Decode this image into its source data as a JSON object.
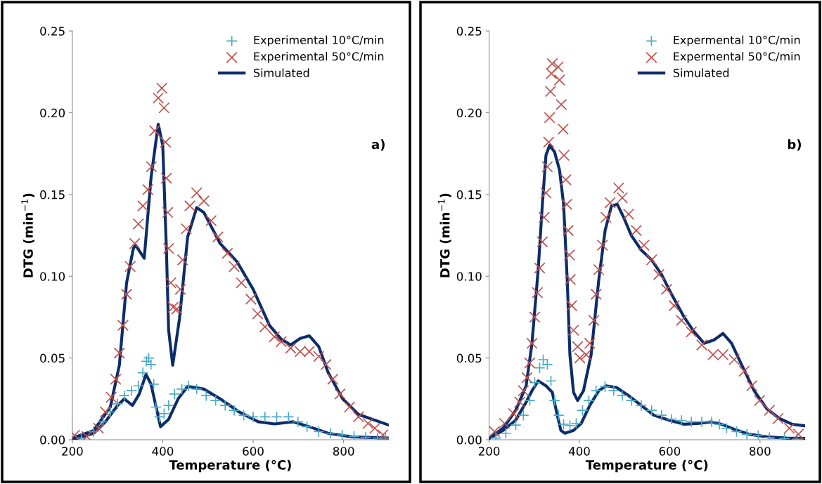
{
  "chart_data": [
    {
      "type": "line",
      "xlabel": "Temperature (°C)",
      "ylabel": "DTG (min$^{−1}$)",
      "annotations": [
        "a)"
      ],
      "xlim": [
        200,
        900
      ],
      "xticks": [
        200,
        400,
        600,
        800
      ],
      "ylim": [
        0,
        0.25
      ],
      "yticks": [
        {
          "value": 0,
          "label": "0.00"
        },
        {
          "value": 0.05,
          "label": "0.05"
        },
        {
          "value": 0.1,
          "label": "0.10"
        },
        {
          "value": 0.15,
          "label": "0.15"
        },
        {
          "value": 0.2,
          "label": "0.20"
        },
        {
          "value": 0.25,
          "label": "0.25"
        }
      ],
      "grid": false,
      "legend": "top right",
      "series": [
        {
          "name": "Experimental 10°C/min",
          "type": "scatter",
          "marker": "plus",
          "color": "#4bacc6",
          "x": [
            220,
            247,
            268,
            284,
            300,
            315,
            331,
            346,
            356,
            364,
            369,
            374,
            380,
            385,
            393,
            403,
            413,
            426,
            442,
            457,
            475,
            496,
            517,
            538,
            558,
            579,
            600,
            626,
            652,
            678,
            699,
            719,
            745,
            771,
            797,
            823,
            849,
            875,
            893
          ],
          "values": [
            0.001,
            0.005,
            0.011,
            0.017,
            0.022,
            0.027,
            0.03,
            0.033,
            0.041,
            0.048,
            0.05,
            0.046,
            0.034,
            0.02,
            0.014,
            0.016,
            0.021,
            0.028,
            0.031,
            0.033,
            0.031,
            0.027,
            0.024,
            0.021,
            0.018,
            0.015,
            0.014,
            0.014,
            0.014,
            0.014,
            0.011,
            0.008,
            0.005,
            0.004,
            0.003,
            0.002,
            0.0015,
            0.001,
            0.001
          ]
        },
        {
          "name": "Experimental 50°C/min",
          "type": "scatter",
          "marker": "cross",
          "color": "#c0504d",
          "x": [
            205,
            232,
            258,
            273,
            286,
            296,
            304,
            312,
            320,
            328,
            338,
            346,
            356,
            367,
            375,
            382,
            390,
            398,
            403,
            406,
            408,
            411,
            413,
            418,
            423,
            431,
            439,
            444,
            452,
            460,
            475,
            491,
            507,
            522,
            543,
            558,
            574,
            595,
            610,
            626,
            647,
            662,
            683,
            704,
            724,
            745,
            761,
            776,
            792,
            813,
            833,
            854,
            869,
            887
          ],
          "values": [
            0.0027,
            0.002,
            0.007,
            0.017,
            0.026,
            0.037,
            0.053,
            0.07,
            0.089,
            0.106,
            0.12,
            0.132,
            0.143,
            0.153,
            0.167,
            0.189,
            0.209,
            0.215,
            0.203,
            0.182,
            0.16,
            0.139,
            0.117,
            0.096,
            0.081,
            0.08,
            0.092,
            0.11,
            0.129,
            0.143,
            0.151,
            0.146,
            0.134,
            0.124,
            0.114,
            0.106,
            0.096,
            0.086,
            0.077,
            0.069,
            0.063,
            0.06,
            0.056,
            0.054,
            0.054,
            0.051,
            0.046,
            0.037,
            0.028,
            0.02,
            0.014,
            0.01,
            0.007,
            0.003
          ]
        },
        {
          "name": "Simulated",
          "marker": "none",
          "line_style": "solid",
          "color": "#0c2d6b",
          "x": [
            200,
            247,
            284,
            304,
            320,
            335,
            340,
            359,
            374,
            390,
            400,
            408,
            413,
            422,
            437,
            455,
            475,
            491,
            527,
            564,
            600,
            636,
            662,
            683,
            704,
            724,
            745,
            766,
            798,
            833,
            900
          ],
          "values": [
            0.001,
            0.0056,
            0.02,
            0.0456,
            0.096,
            0.117,
            0.119,
            0.111,
            0.16,
            0.193,
            0.18,
            0.117,
            0.067,
            0.0456,
            0.074,
            0.124,
            0.142,
            0.139,
            0.12,
            0.109,
            0.092,
            0.07,
            0.0615,
            0.058,
            0.062,
            0.0636,
            0.057,
            0.041,
            0.025,
            0.0155,
            0.009
          ]
        },
        {
          "marker": "none",
          "line_style": "solid",
          "color": "#0c2d6b",
          "x": [
            200,
            247,
            273,
            300,
            315,
            333,
            348,
            363,
            374,
            395,
            413,
            434,
            455,
            491,
            527,
            569,
            611,
            647,
            689,
            724,
            766,
            818,
            900
          ],
          "values": [
            0.0,
            0.004,
            0.011,
            0.021,
            0.025,
            0.021,
            0.028,
            0.04,
            0.034,
            0.008,
            0.0125,
            0.025,
            0.0327,
            0.031,
            0.025,
            0.017,
            0.011,
            0.0097,
            0.011,
            0.008,
            0.004,
            0.0018,
            0.001
          ]
        }
      ]
    },
    {
      "type": "line",
      "xlabel": "Temperature (°C)",
      "ylabel": "DTG (min$^{−1}$)",
      "annotations": [
        "b)"
      ],
      "xlim": [
        200,
        900
      ],
      "xticks": [
        200,
        400,
        600,
        800
      ],
      "ylim": [
        0,
        0.25
      ],
      "yticks": [
        {
          "value": 0,
          "label": "0.00"
        },
        {
          "value": 0.05,
          "label": "0.05"
        },
        {
          "value": 0.1,
          "label": "0.10"
        },
        {
          "value": 0.15,
          "label": "0.15"
        },
        {
          "value": 0.2,
          "label": "0.20"
        },
        {
          "value": 0.25,
          "label": "0.25"
        }
      ],
      "grid": false,
      "legend": "top right",
      "series": [
        {
          "name": "Expermental 10°C/min",
          "type": "scatter",
          "marker": "plus",
          "color": "#4bacc6",
          "x": [
            215,
            237,
            259,
            276,
            290,
            301,
            312,
            320,
            329,
            337,
            345,
            354,
            365,
            379,
            393,
            407,
            421,
            437,
            457,
            476,
            495,
            515,
            537,
            560,
            582,
            604,
            626,
            648,
            671,
            693,
            710,
            726,
            748,
            771,
            796,
            821,
            854,
            882
          ],
          "values": [
            0.001,
            0.004,
            0.009,
            0.015,
            0.024,
            0.035,
            0.044,
            0.049,
            0.046,
            0.036,
            0.024,
            0.015,
            0.0095,
            0.0087,
            0.01,
            0.018,
            0.024,
            0.03,
            0.0325,
            0.03,
            0.027,
            0.024,
            0.021,
            0.018,
            0.015,
            0.0126,
            0.0118,
            0.011,
            0.011,
            0.011,
            0.0095,
            0.007,
            0.005,
            0.0034,
            0.0026,
            0.0014,
            0.0008,
            0.0003
          ]
        },
        {
          "name": "Expermental 50°C/min",
          "type": "scatter",
          "marker": "cross",
          "color": "#c0504d",
          "x": [
            212,
            234,
            254,
            268,
            276,
            284,
            290,
            295,
            301,
            307,
            312,
            318,
            322,
            326,
            329,
            332,
            334,
            336,
            338,
            340,
            353,
            356,
            360,
            364,
            366,
            370,
            372,
            375,
            378,
            380,
            383,
            387,
            396,
            401,
            415,
            423,
            432,
            437,
            443,
            451,
            459,
            468,
            487,
            495,
            509,
            526,
            543,
            560,
            576,
            593,
            610,
            626,
            648,
            671,
            696,
            718,
            743,
            765,
            782,
            799,
            821,
            840,
            865,
            885
          ],
          "values": [
            0.005,
            0.01,
            0.016,
            0.023,
            0.03,
            0.038,
            0.047,
            0.059,
            0.075,
            0.09,
            0.105,
            0.121,
            0.136,
            0.151,
            0.167,
            0.182,
            0.197,
            0.213,
            0.224,
            0.23,
            0.228,
            0.22,
            0.205,
            0.19,
            0.174,
            0.159,
            0.144,
            0.128,
            0.113,
            0.098,
            0.082,
            0.067,
            0.057,
            0.05,
            0.052,
            0.059,
            0.073,
            0.089,
            0.104,
            0.119,
            0.136,
            0.145,
            0.154,
            0.148,
            0.138,
            0.128,
            0.119,
            0.11,
            0.101,
            0.092,
            0.082,
            0.073,
            0.066,
            0.058,
            0.052,
            0.052,
            0.049,
            0.042,
            0.033,
            0.024,
            0.018,
            0.013,
            0.007,
            0.0034
          ]
        },
        {
          "name": "Simulated",
          "marker": "none",
          "line_style": "solid",
          "color": "#0c2d6b",
          "x": [
            201,
            231,
            259,
            282,
            295,
            309,
            318,
            326,
            334,
            345,
            356,
            365,
            373,
            379,
            387,
            396,
            409,
            426,
            443,
            457,
            471,
            484,
            498,
            515,
            537,
            560,
            582,
            604,
            632,
            654,
            676,
            698,
            718,
            737,
            759,
            787,
            815,
            843,
            871,
            900
          ],
          "values": [
            0.001,
            0.007,
            0.018,
            0.033,
            0.059,
            0.105,
            0.144,
            0.174,
            0.18,
            0.176,
            0.165,
            0.144,
            0.098,
            0.052,
            0.029,
            0.024,
            0.03,
            0.052,
            0.098,
            0.128,
            0.143,
            0.144,
            0.136,
            0.125,
            0.116,
            0.11,
            0.101,
            0.089,
            0.075,
            0.066,
            0.059,
            0.061,
            0.065,
            0.059,
            0.046,
            0.03,
            0.019,
            0.013,
            0.0095,
            0.0085
          ]
        },
        {
          "marker": "none",
          "line_style": "solid",
          "color": "#0c2d6b",
          "x": [
            201,
            231,
            259,
            282,
            295,
            309,
            326,
            340,
            351,
            359,
            368,
            387,
            404,
            423,
            443,
            459,
            482,
            509,
            537,
            565,
            598,
            632,
            665,
            693,
            715,
            743,
            776,
            815,
            859,
            900
          ],
          "values": [
            0.001,
            0.0057,
            0.012,
            0.023,
            0.03,
            0.036,
            0.033,
            0.029,
            0.015,
            0.0057,
            0.004,
            0.0057,
            0.01,
            0.021,
            0.03,
            0.033,
            0.032,
            0.027,
            0.021,
            0.015,
            0.012,
            0.0095,
            0.01,
            0.011,
            0.0095,
            0.0064,
            0.0034,
            0.0018,
            0.001,
            0.0008
          ]
        }
      ]
    }
  ]
}
